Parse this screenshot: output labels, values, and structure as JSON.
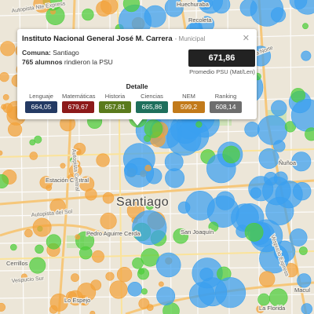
{
  "map": {
    "labels": {
      "santiago": "Santiago",
      "recoleta": "Recoleta",
      "huechuraba": "Huechuraba",
      "estacion_central": "Estación Central",
      "pedro_aguirre_cerda": "Pedro Aguirre Cerda",
      "san_joaquin": "San Joaquín",
      "nunoa": "Ñuñoa",
      "macul": "Macul",
      "lo_espejo": "Lo Espejo",
      "cerrillos": "Cerrillos",
      "la_florida": "La Florida",
      "autopista_del_sol": "Autopista del Sol",
      "autopista_central": "Autopista Central",
      "costanera_norte": "Costanera Norte",
      "autopista_nte_express": "Autopista Nte Express",
      "vespucio_sur": "Vespucio Sur",
      "vespucio_express": "Vespucio Express"
    }
  },
  "popup": {
    "school_name": "Instituto Nacional General José M. Carrera",
    "school_type": "- Municipal",
    "comuna_label": "Comuna:",
    "comuna_value": "Santiago",
    "alumnos_count": "765 alumnos",
    "alumnos_suffix": "rindieron la PSU",
    "score": "671,86",
    "score_label": "Promedio PSU (Mat/Len)",
    "close_glyph": "✕",
    "detalle_title": "Detalle",
    "metrics": [
      {
        "label": "Lenguaje",
        "value": "664,05",
        "color": "#243a63"
      },
      {
        "label": "Matemáticas",
        "value": "679,67",
        "color": "#8c1a1a"
      },
      {
        "label": "Historia",
        "value": "657,81",
        "color": "#5a7a1c"
      },
      {
        "label": "Ciencias",
        "value": "665,86",
        "color": "#1e6f5c"
      },
      {
        "label": "NEM",
        "value": "599,2",
        "color": "#c27a1a"
      },
      {
        "label": "Ranking",
        "value": "608,14",
        "color": "#6d6d6d"
      }
    ]
  },
  "colors": {
    "blue_dot": "#3aa0f0",
    "green_dot": "#4ccd3a",
    "orange_dot": "#f2a23a"
  }
}
